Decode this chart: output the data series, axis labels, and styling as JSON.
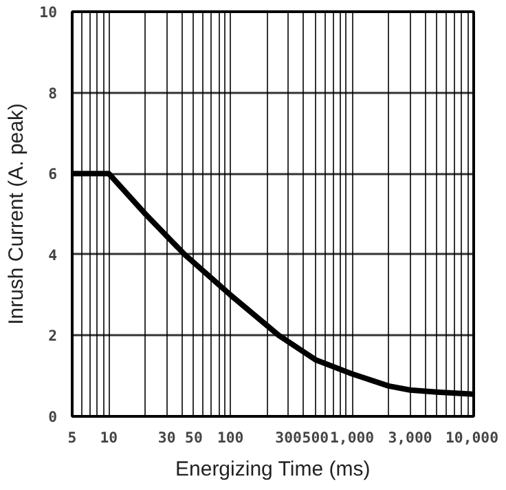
{
  "chart_data": {
    "type": "line",
    "xlabel": "Energizing Time (ms)",
    "ylabel": "Inrush Current (A. peak)",
    "log": "x",
    "grid": true,
    "line_style": "solid",
    "marker": "none",
    "x": [
      5,
      10,
      20,
      42,
      100,
      250,
      500,
      1000,
      2000,
      3000,
      5000,
      10000
    ],
    "series": [
      {
        "color": "#000000",
        "values": [
          6,
          6,
          5,
          4,
          3,
          2,
          1.4,
          1.05,
          0.75,
          0.65,
          0.6,
          0.55
        ]
      }
    ],
    "xlim": [
      5,
      10000
    ],
    "ylim": [
      0,
      10
    ],
    "xticks": [
      5,
      {
        "value": 6,
        "label": null
      },
      {
        "value": 7,
        "label": null
      },
      {
        "value": 8,
        "label": null
      },
      {
        "value": 9,
        "label": null
      },
      10,
      {
        "value": 20,
        "label": null
      },
      30,
      {
        "value": 40,
        "label": null
      },
      50,
      {
        "value": 60,
        "label": null
      },
      {
        "value": 70,
        "label": null
      },
      {
        "value": 80,
        "label": null
      },
      {
        "value": 90,
        "label": null
      },
      100,
      {
        "value": 200,
        "label": null
      },
      300,
      {
        "value": 400,
        "label": null
      },
      500,
      {
        "value": 600,
        "label": null
      },
      {
        "value": 700,
        "label": null
      },
      {
        "value": 800,
        "label": null
      },
      {
        "value": 900,
        "label": null
      },
      {
        "value": 1000,
        "label": "1,000"
      },
      {
        "value": 2000,
        "label": null
      },
      {
        "value": 3000,
        "label": "3,000"
      },
      {
        "value": 4000,
        "label": null
      },
      {
        "value": 5000,
        "label": null
      },
      {
        "value": 6000,
        "label": null
      },
      {
        "value": 7000,
        "label": null
      },
      {
        "value": 8000,
        "label": null
      },
      {
        "value": 9000,
        "label": null
      },
      {
        "value": 10000,
        "label": "10,000"
      }
    ],
    "yticks": [
      0,
      2,
      4,
      6,
      8,
      10
    ]
  }
}
